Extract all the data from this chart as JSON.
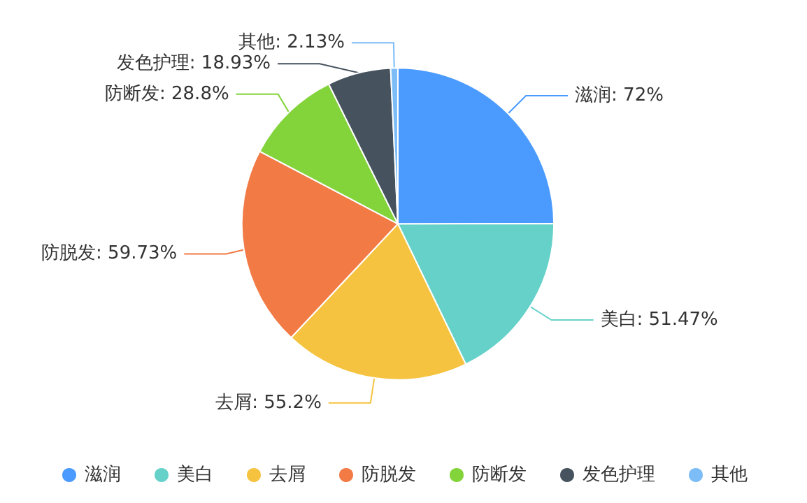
{
  "chart_data": {
    "type": "pie",
    "categories": [
      "滋润",
      "美白",
      "去屑",
      "防脱发",
      "防断发",
      "发色护理",
      "其他"
    ],
    "values": [
      72,
      51.47,
      55.2,
      59.73,
      28.8,
      18.93,
      2.13
    ],
    "value_labels": [
      "滋润: 72%",
      "美白: 51.47%",
      "去屑: 55.2%",
      "防脱发: 59.73%",
      "防断发: 28.8%",
      "发色护理: 18.93%",
      "其他: 2.13%"
    ],
    "colors": [
      "#4b9bff",
      "#65d1c9",
      "#f5c33f",
      "#f27a45",
      "#83d33b",
      "#46525e",
      "#7cbcf7"
    ],
    "legend": "bottom"
  }
}
